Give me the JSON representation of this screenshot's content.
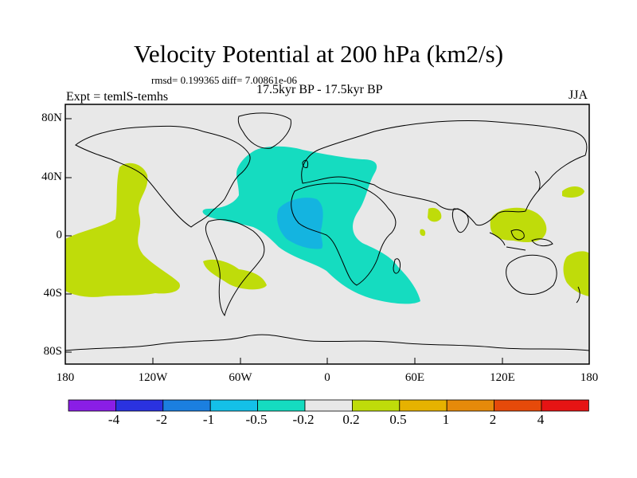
{
  "title": "Velocity Potential at 200 hPa (km2/s)",
  "stats": "rmsd= 0.199365 diff= 7.00861e-06",
  "period": "17.5kyr BP - 17.5kyr BP",
  "experiment": "Expt = temlS-temhs",
  "season": "JJA",
  "y_ticks": [
    "80N",
    "40N",
    "0",
    "40S",
    "80S"
  ],
  "x_ticks": [
    "180",
    "120W",
    "60W",
    "0",
    "60E",
    "120E",
    "180"
  ],
  "colorbar": {
    "colors": [
      "#8a1ee6",
      "#2a32e0",
      "#1b7fe0",
      "#14c0e8",
      "#15dcc0",
      "#e8e8e8",
      "#bfdc0a",
      "#e6b200",
      "#e68a0a",
      "#e64a0a",
      "#e61414"
    ],
    "labels": [
      "-4",
      "-2",
      "-1",
      "-0.5",
      "-0.2",
      "0.2",
      "0.5",
      "1",
      "2",
      "4"
    ]
  },
  "field_colors": {
    "positive": "#bfdc0a",
    "negative_weak": "#15dcc0",
    "negative_mid": "#14b4e0",
    "background": "#e8e8e8"
  }
}
